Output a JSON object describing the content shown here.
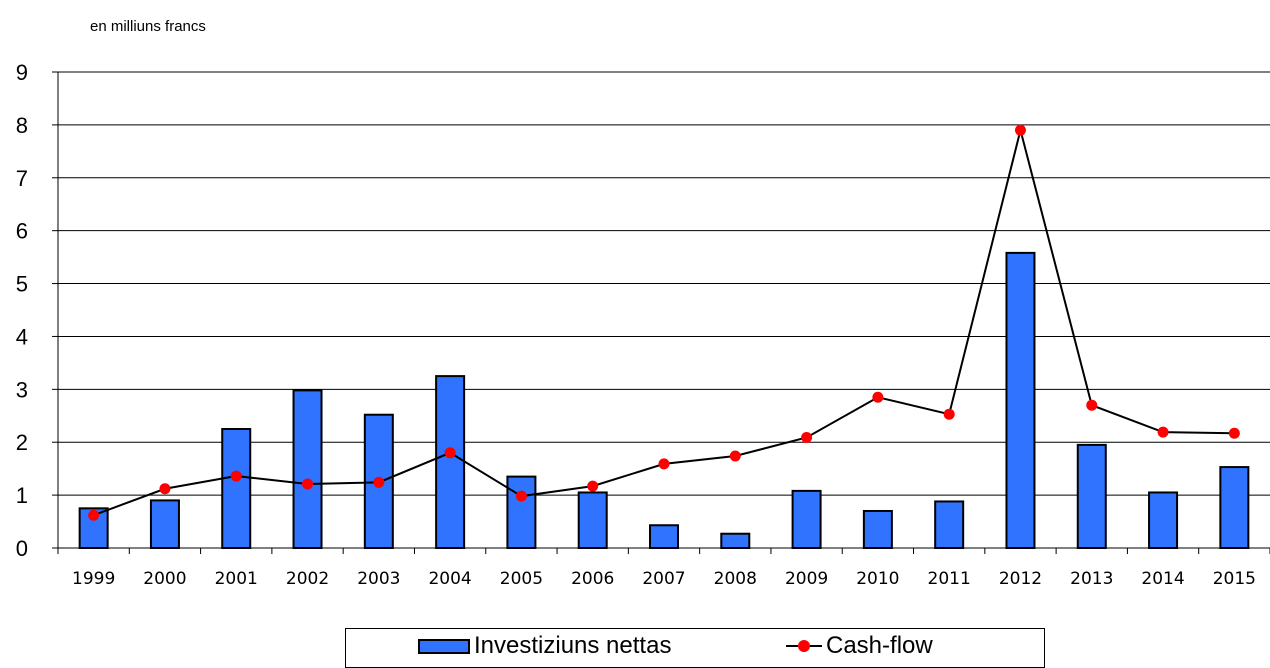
{
  "unit_label": "en milliuns francs",
  "chart_data": {
    "type": "bar",
    "title": "",
    "xlabel": "",
    "ylabel": "",
    "ylim": [
      0,
      9
    ],
    "yticks": [
      0,
      1,
      2,
      3,
      4,
      5,
      6,
      7,
      8,
      9
    ],
    "grid": true,
    "legend_position": "bottom",
    "categories": [
      "1999",
      "2000",
      "2001",
      "2002",
      "2003",
      "2004",
      "2005",
      "2006",
      "2007",
      "2008",
      "2009",
      "2010",
      "2011",
      "2012",
      "2013",
      "2014",
      "2015"
    ],
    "series": [
      {
        "name": "Investiziuns nettas",
        "type": "bar",
        "color": "#2f73ff",
        "values": [
          0.75,
          0.9,
          2.25,
          2.98,
          2.52,
          3.25,
          1.35,
          1.05,
          0.43,
          0.27,
          1.08,
          0.7,
          0.88,
          5.58,
          1.95,
          1.05,
          1.53
        ]
      },
      {
        "name": "Cash-flow",
        "type": "line",
        "color": "#000000",
        "marker_color": "#ff0000",
        "values": [
          0.62,
          1.12,
          1.36,
          1.21,
          1.24,
          1.8,
          0.98,
          1.17,
          1.59,
          1.74,
          2.09,
          2.85,
          2.53,
          7.9,
          2.7,
          2.19,
          2.17
        ]
      }
    ]
  }
}
